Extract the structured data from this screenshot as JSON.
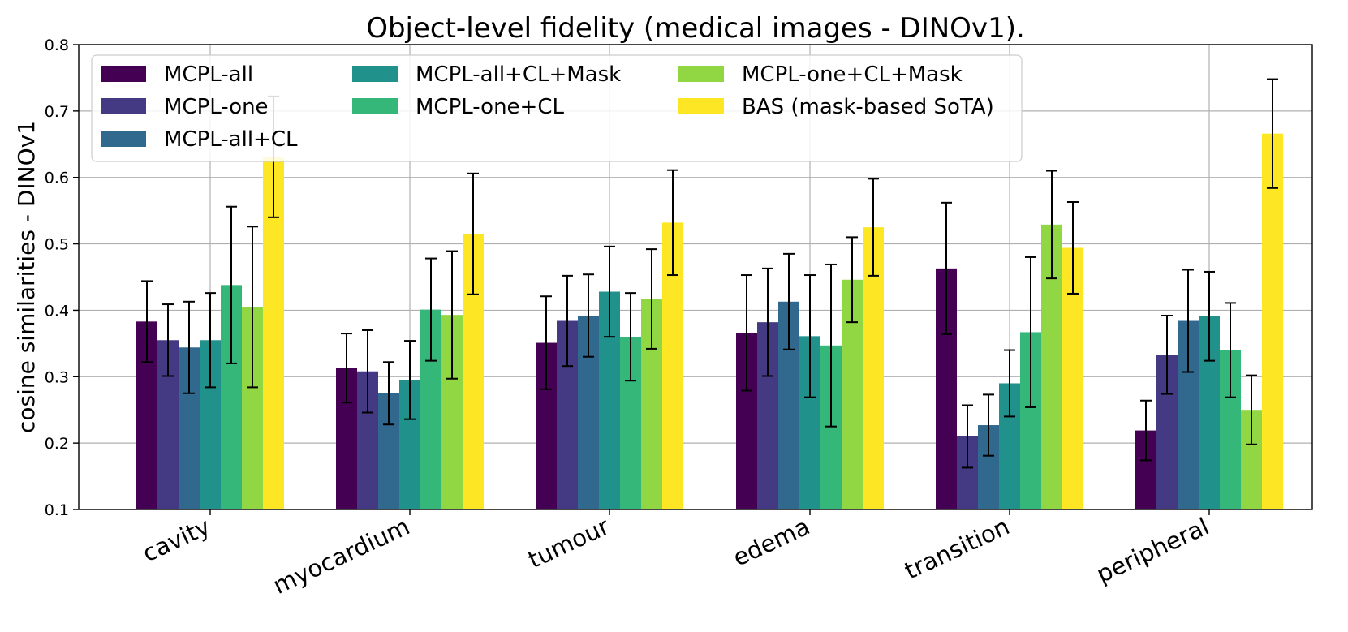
{
  "chart_data": {
    "type": "bar",
    "title": "Object-level fidelity (medical images - DINOv1).",
    "xlabel": "",
    "ylabel": "cosine similarities - DINOv1",
    "ylim": [
      0.1,
      0.8
    ],
    "yticks": [
      "0.1",
      "0.2",
      "0.3",
      "0.4",
      "0.5",
      "0.6",
      "0.7",
      "0.8"
    ],
    "grid": true,
    "legend_position": "top-left",
    "categories": [
      "cavity",
      "myocardium",
      "tumour",
      "edema",
      "transition",
      "peripheral"
    ],
    "series": [
      {
        "name": "MCPL-all",
        "color": "#440154",
        "values": [
          0.383,
          0.313,
          0.351,
          0.366,
          0.463,
          0.219
        ],
        "errors": [
          0.061,
          0.052,
          0.07,
          0.087,
          0.099,
          0.045
        ]
      },
      {
        "name": "MCPL-one",
        "color": "#443983",
        "values": [
          0.355,
          0.308,
          0.384,
          0.382,
          0.21,
          0.333
        ],
        "errors": [
          0.054,
          0.062,
          0.068,
          0.081,
          0.047,
          0.059
        ]
      },
      {
        "name": "MCPL-all+CL",
        "color": "#31688e",
        "values": [
          0.344,
          0.275,
          0.392,
          0.413,
          0.227,
          0.384
        ],
        "errors": [
          0.069,
          0.047,
          0.062,
          0.072,
          0.046,
          0.077
        ]
      },
      {
        "name": "MCPL-all+CL+Mask",
        "color": "#21918c",
        "values": [
          0.355,
          0.295,
          0.428,
          0.361,
          0.29,
          0.391
        ],
        "errors": [
          0.071,
          0.059,
          0.068,
          0.092,
          0.05,
          0.067
        ]
      },
      {
        "name": "MCPL-one+CL",
        "color": "#35b779",
        "values": [
          0.438,
          0.401,
          0.36,
          0.347,
          0.367,
          0.34
        ],
        "errors": [
          0.118,
          0.077,
          0.066,
          0.122,
          0.113,
          0.071
        ]
      },
      {
        "name": "MCPL-one+CL+Mask",
        "color": "#90d743",
        "values": [
          0.405,
          0.393,
          0.417,
          0.446,
          0.529,
          0.25
        ],
        "errors": [
          0.121,
          0.096,
          0.075,
          0.064,
          0.081,
          0.052
        ]
      },
      {
        "name": "BAS (mask-based SoTA)",
        "color": "#fde725",
        "values": [
          0.631,
          0.515,
          0.532,
          0.525,
          0.494,
          0.666
        ],
        "errors": [
          0.091,
          0.091,
          0.079,
          0.073,
          0.069,
          0.082
        ]
      }
    ]
  }
}
